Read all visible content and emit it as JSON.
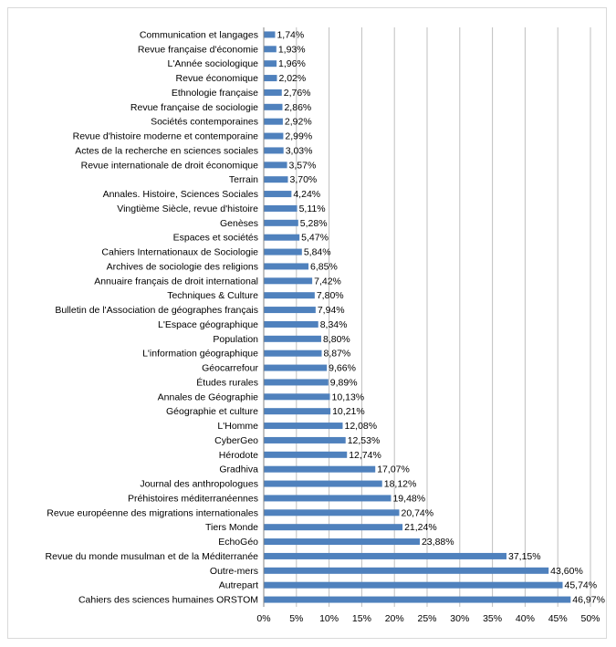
{
  "chart_data": {
    "type": "bar",
    "orientation": "horizontal",
    "categories": [
      "Communication et langages",
      "Revue française d'économie",
      "L'Année sociologique",
      "Revue économique",
      "Ethnologie française",
      "Revue française de sociologie",
      "Sociétés contemporaines",
      "Revue d'histoire moderne et contemporaine",
      "Actes de la recherche en sciences sociales",
      "Revue internationale de droit économique",
      "Terrain",
      "Annales. Histoire, Sciences Sociales",
      "Vingtième Siècle, revue d'histoire",
      "Genèses",
      "Espaces et sociétés",
      "Cahiers Internationaux de Sociologie",
      "Archives de sociologie des religions",
      "Annuaire français de droit international",
      "Techniques & Culture",
      "Bulletin de l'Association de géographes français",
      "L'Espace géographique",
      "Population",
      "L'information géographique",
      "Géocarrefour",
      "Études rurales",
      "Annales de Géographie",
      "Géographie et culture",
      "L'Homme",
      "CyberGeo",
      "Hérodote",
      "Gradhiva",
      "Journal des anthropologues",
      "Préhistoires méditerranéennes",
      "Revue européenne des migrations internationales",
      "Tiers Monde",
      "EchoGéo",
      "Revue du monde musulman et de la Méditerranée",
      "Outre-mers",
      "Autrepart",
      "Cahiers des sciences humaines ORSTOM"
    ],
    "values": [
      1.74,
      1.93,
      1.96,
      2.02,
      2.76,
      2.86,
      2.92,
      2.99,
      3.03,
      3.57,
      3.7,
      4.24,
      5.11,
      5.28,
      5.47,
      5.84,
      6.85,
      7.42,
      7.8,
      7.94,
      8.34,
      8.8,
      8.87,
      9.66,
      9.89,
      10.13,
      10.21,
      12.08,
      12.53,
      12.74,
      17.07,
      18.12,
      19.48,
      20.74,
      21.24,
      23.88,
      37.15,
      43.6,
      45.74,
      46.97
    ],
    "value_labels": [
      "1,74%",
      "1,93%",
      "1,96%",
      "2,02%",
      "2,76%",
      "2,86%",
      "2,92%",
      "2,99%",
      "3,03%",
      "3,57%",
      "3,70%",
      "4,24%",
      "5,11%",
      "5,28%",
      "5,47%",
      "5,84%",
      "6,85%",
      "7,42%",
      "7,80%",
      "7,94%",
      "8,34%",
      "8,80%",
      "8,87%",
      "9,66%",
      "9,89%",
      "10,13%",
      "10,21%",
      "12,08%",
      "12,53%",
      "12,74%",
      "17,07%",
      "18,12%",
      "19,48%",
      "20,74%",
      "21,24%",
      "23,88%",
      "37,15%",
      "43,60%",
      "45,74%",
      "46,97%"
    ],
    "x_ticks": [
      "0%",
      "5%",
      "10%",
      "15%",
      "20%",
      "25%",
      "30%",
      "35%",
      "40%",
      "45%",
      "50%"
    ],
    "xlim": [
      0,
      50
    ],
    "title": "",
    "xlabel": "",
    "ylabel": "",
    "grid": "vertical",
    "legend": "none",
    "bar_color": "#4f81bd"
  }
}
